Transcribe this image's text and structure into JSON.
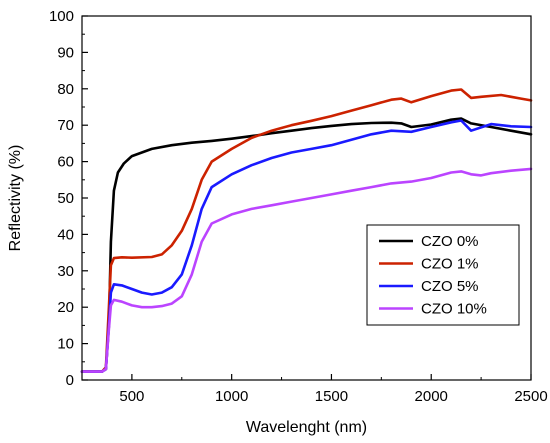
{
  "chart_data": {
    "type": "line",
    "title": "",
    "xlabel": "Wavelenght (nm)",
    "ylabel": "Reflectivity (%)",
    "xlim": [
      250,
      2500
    ],
    "ylim": [
      0,
      100
    ],
    "x_ticks": [
      500,
      1000,
      1500,
      2000,
      2500
    ],
    "y_ticks": [
      0,
      10,
      20,
      30,
      40,
      50,
      60,
      70,
      80,
      90,
      100
    ],
    "x_tick_labels": [
      "500",
      "1000",
      "1500",
      "2000",
      "2500"
    ],
    "y_tick_labels": [
      "0",
      "10",
      "20",
      "30",
      "40",
      "50",
      "60",
      "70",
      "80",
      "90",
      "100"
    ],
    "grid": false,
    "legend_position": "right-middle",
    "series": [
      {
        "name": "CZO 0%",
        "color": "#000000",
        "x": [
          250,
          350,
          370,
          385,
          395,
          410,
          430,
          460,
          500,
          600,
          700,
          800,
          900,
          1000,
          1100,
          1200,
          1300,
          1400,
          1500,
          1600,
          1700,
          1800,
          1850,
          1900,
          2000,
          2100,
          2150,
          2200,
          2300,
          2400,
          2500
        ],
        "y": [
          2.3,
          2.3,
          3.0,
          15,
          38,
          52,
          57,
          59.5,
          61.5,
          63.5,
          64.5,
          65.2,
          65.7,
          66.3,
          67,
          67.8,
          68.5,
          69.2,
          69.8,
          70.3,
          70.6,
          70.7,
          70.5,
          69.5,
          70.2,
          71.5,
          71.8,
          70.5,
          69.5,
          68.5,
          67.5
        ]
      },
      {
        "name": "CZO 1%",
        "color": "#cc2200",
        "x": [
          250,
          350,
          370,
          385,
          395,
          410,
          450,
          500,
          600,
          650,
          700,
          750,
          800,
          850,
          900,
          1000,
          1100,
          1200,
          1300,
          1400,
          1500,
          1600,
          1700,
          1800,
          1850,
          1900,
          2000,
          2100,
          2150,
          2200,
          2250,
          2350,
          2450,
          2500
        ],
        "y": [
          2.3,
          2.3,
          3.5,
          20,
          31.5,
          33.5,
          33.7,
          33.6,
          33.8,
          34.5,
          37,
          41,
          47,
          55,
          60,
          63.5,
          66.5,
          68.5,
          70,
          71.2,
          72.5,
          74,
          75.5,
          77,
          77.3,
          76.3,
          78,
          79.5,
          79.8,
          77.5,
          77.8,
          78.3,
          77.3,
          76.8
        ]
      },
      {
        "name": "CZO 5%",
        "color": "#1a1aff",
        "x": [
          250,
          350,
          370,
          385,
          395,
          410,
          450,
          500,
          550,
          600,
          650,
          700,
          750,
          800,
          850,
          900,
          1000,
          1100,
          1200,
          1300,
          1400,
          1500,
          1600,
          1700,
          1800,
          1900,
          2000,
          2100,
          2150,
          2200,
          2300,
          2400,
          2500
        ],
        "y": [
          2.3,
          2.3,
          3.0,
          15,
          24,
          26.3,
          26,
          25,
          24,
          23.5,
          24,
          25.5,
          29,
          37,
          47,
          53,
          56.5,
          59,
          61,
          62.5,
          63.5,
          64.5,
          66,
          67.5,
          68.5,
          68.2,
          69.5,
          70.8,
          71.3,
          68.5,
          70.3,
          69.7,
          69.5
        ]
      },
      {
        "name": "CZO 10%",
        "color": "#bb44ff",
        "x": [
          250,
          350,
          370,
          385,
          395,
          410,
          450,
          500,
          550,
          600,
          650,
          700,
          750,
          800,
          850,
          900,
          1000,
          1100,
          1200,
          1300,
          1400,
          1500,
          1600,
          1700,
          1800,
          1900,
          2000,
          2100,
          2150,
          2200,
          2250,
          2300,
          2400,
          2500
        ],
        "y": [
          2.3,
          2.3,
          3.0,
          14,
          20.5,
          22,
          21.5,
          20.5,
          20,
          20,
          20.3,
          21,
          23,
          29,
          38,
          43,
          45.5,
          47,
          48,
          49,
          50,
          51,
          52,
          53,
          54,
          54.5,
          55.5,
          57,
          57.3,
          56.5,
          56.2,
          56.8,
          57.5,
          58
        ]
      }
    ]
  }
}
